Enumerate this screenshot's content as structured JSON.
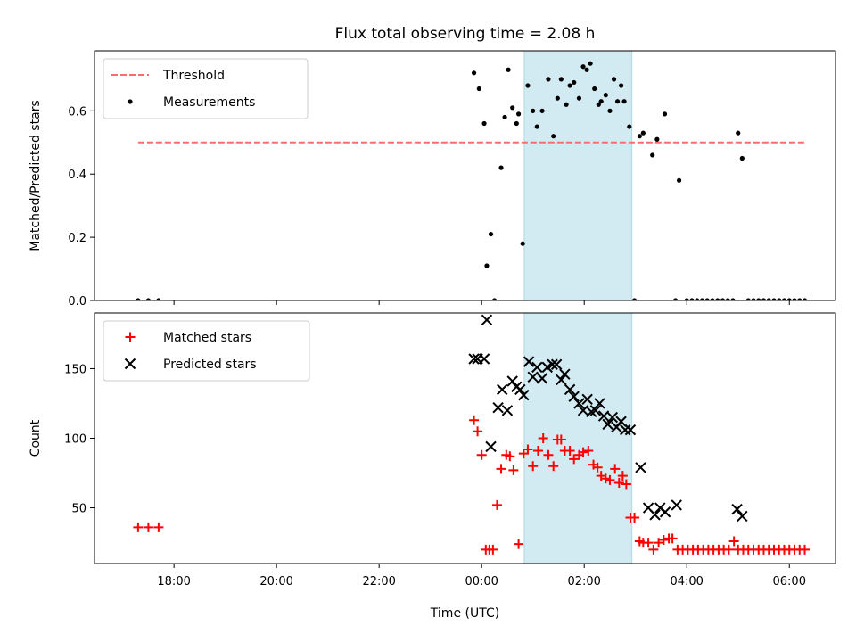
{
  "chart_data": {
    "title": "Flux total observing time = 2.08 h",
    "xlabel": "Time (UTC)",
    "x_unit": "hours UTC relative to midnight",
    "x_tick_labels": [
      "18:00",
      "20:00",
      "22:00",
      "00:00",
      "02:00",
      "04:00",
      "06:00"
    ],
    "x_tick_values": [
      -6,
      -4,
      -2,
      0,
      2,
      4,
      6
    ],
    "xlim": [
      -7.55,
      6.9
    ],
    "highlight_band": {
      "x_range": [
        0.83,
        2.93
      ],
      "color": "#add8e6"
    },
    "panels": [
      {
        "type": "scatter",
        "ylabel": "Matched/Predicted stars",
        "ylim": [
          0,
          0.79
        ],
        "y_ticks": [
          0.0,
          0.2,
          0.4,
          0.6
        ],
        "y_tick_labels": [
          "0.0",
          "0.2",
          "0.4",
          "0.6"
        ],
        "legend_position": "upper-left",
        "series": [
          {
            "name": "Threshold",
            "style": "dashed-line",
            "color": "#ff6b6b",
            "x": [
              -6.7,
              6.3
            ],
            "y": [
              0.5,
              0.5
            ]
          },
          {
            "name": "Measurements",
            "style": "dot",
            "color": "#000000",
            "x": [
              -6.7,
              -6.5,
              -6.3,
              -0.15,
              -0.05,
              0.05,
              0.1,
              0.18,
              0.25,
              0.38,
              0.45,
              0.52,
              0.6,
              0.68,
              0.72,
              0.8,
              0.9,
              1.0,
              1.08,
              1.18,
              1.3,
              1.4,
              1.48,
              1.55,
              1.65,
              1.72,
              1.8,
              1.9,
              1.98,
              2.05,
              2.12,
              2.2,
              2.28,
              2.33,
              2.42,
              2.5,
              2.58,
              2.65,
              2.72,
              2.78,
              2.88,
              2.98,
              3.08,
              3.15,
              3.33,
              3.42,
              3.57,
              3.78,
              3.85,
              4.0,
              4.1,
              4.2,
              4.3,
              4.4,
              4.5,
              4.6,
              4.7,
              4.8,
              4.9,
              5.0,
              5.08,
              5.2,
              5.3,
              5.4,
              5.5,
              5.6,
              5.7,
              5.8,
              5.9,
              6.0,
              6.1,
              6.2,
              6.3
            ],
            "y": [
              0.0,
              0.0,
              0.0,
              0.72,
              0.67,
              0.56,
              0.11,
              0.21,
              0.0,
              0.42,
              0.58,
              0.73,
              0.61,
              0.56,
              0.59,
              0.18,
              0.68,
              0.6,
              0.55,
              0.6,
              0.7,
              0.52,
              0.64,
              0.7,
              0.62,
              0.68,
              0.69,
              0.64,
              0.74,
              0.73,
              0.75,
              0.67,
              0.62,
              0.63,
              0.65,
              0.6,
              0.7,
              0.63,
              0.68,
              0.63,
              0.55,
              0.0,
              0.52,
              0.53,
              0.46,
              0.51,
              0.59,
              0.0,
              0.38,
              0.0,
              0.0,
              0.0,
              0.0,
              0.0,
              0.0,
              0.0,
              0.0,
              0.0,
              0.0,
              0.53,
              0.45,
              0.0,
              0.0,
              0.0,
              0.0,
              0.0,
              0.0,
              0.0,
              0.0,
              0.0,
              0.0,
              0.0,
              0.0
            ]
          }
        ]
      },
      {
        "type": "scatter",
        "ylabel": "Count",
        "ylim": [
          10,
          190
        ],
        "y_ticks": [
          50,
          100,
          150
        ],
        "y_tick_labels": [
          "50",
          "100",
          "150"
        ],
        "legend_position": "upper-left",
        "series": [
          {
            "name": "Matched stars",
            "style": "plus",
            "color": "#ff0000",
            "x": [
              -6.7,
              -6.5,
              -6.3,
              -0.15,
              -0.08,
              0.0,
              0.08,
              0.15,
              0.22,
              0.3,
              0.38,
              0.48,
              0.55,
              0.62,
              0.72,
              0.82,
              0.9,
              1.0,
              1.1,
              1.2,
              1.3,
              1.4,
              1.48,
              1.55,
              1.62,
              1.72,
              1.8,
              1.9,
              1.98,
              2.08,
              2.18,
              2.26,
              2.33,
              2.42,
              2.5,
              2.6,
              2.68,
              2.75,
              2.82,
              2.9,
              2.98,
              3.08,
              3.15,
              3.25,
              3.35,
              3.45,
              3.55,
              3.65,
              3.72,
              3.82,
              3.92,
              4.02,
              4.12,
              4.22,
              4.32,
              4.42,
              4.52,
              4.62,
              4.72,
              4.82,
              4.92,
              5.0,
              5.1,
              5.2,
              5.3,
              5.4,
              5.5,
              5.6,
              5.7,
              5.8,
              5.9,
              6.0,
              6.1,
              6.2,
              6.3
            ],
            "y": [
              36,
              36,
              36,
              113,
              105,
              88,
              20,
              20,
              20,
              52,
              78,
              88,
              87,
              77,
              24,
              89,
              92,
              80,
              91,
              100,
              88,
              80,
              99,
              99,
              91,
              91,
              85,
              88,
              90,
              91,
              81,
              79,
              73,
              71,
              70,
              78,
              68,
              73,
              67,
              43,
              43,
              26,
              25,
              25,
              20,
              25,
              27,
              28,
              28,
              20,
              20,
              20,
              20,
              20,
              20,
              20,
              20,
              20,
              20,
              20,
              26,
              20,
              20,
              20,
              20,
              20,
              20,
              20,
              20,
              20,
              20,
              20,
              20,
              20,
              20
            ]
          },
          {
            "name": "Predicted stars",
            "style": "x",
            "color": "#000000",
            "x": [
              -0.15,
              -0.08,
              0.05,
              0.1,
              0.18,
              0.32,
              0.4,
              0.5,
              0.6,
              0.68,
              0.75,
              0.82,
              0.92,
              1.0,
              1.08,
              1.18,
              1.28,
              1.38,
              1.46,
              1.55,
              1.62,
              1.72,
              1.8,
              1.9,
              1.98,
              2.06,
              2.14,
              2.22,
              2.3,
              2.38,
              2.46,
              2.55,
              2.63,
              2.72,
              2.8,
              2.9,
              3.1,
              3.25,
              3.38,
              3.48,
              3.58,
              3.8,
              4.98,
              5.08
            ],
            "y": [
              157,
              157,
              157,
              185,
              94,
              122,
              135,
              120,
              141,
              137,
              135,
              131,
              155,
              144,
              151,
              143,
              151,
              153,
              153,
              142,
              146,
              135,
              130,
              125,
              120,
              128,
              119,
              120,
              125,
              116,
              110,
              115,
              108,
              112,
              106,
              106,
              79,
              50,
              45,
              50,
              47,
              52,
              49,
              44
            ]
          }
        ]
      }
    ]
  }
}
